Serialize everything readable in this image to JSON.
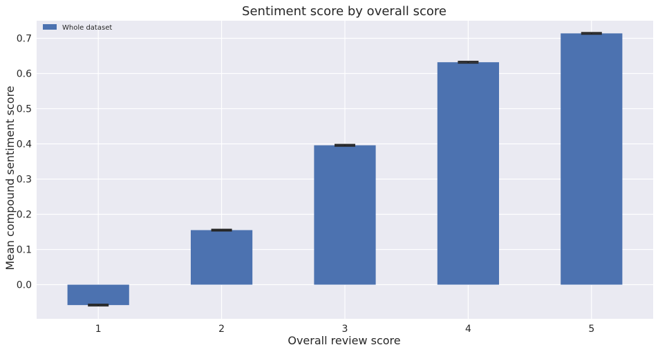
{
  "chart_data": {
    "type": "bar",
    "title": "Sentiment score by overall score",
    "xlabel": "Overall review score",
    "ylabel": "Mean compound sentiment score",
    "categories": [
      "1",
      "2",
      "3",
      "4",
      "5"
    ],
    "series": [
      {
        "name": "Whole dataset",
        "values": [
          -0.058,
          0.155,
          0.396,
          0.632,
          0.714
        ],
        "error": [
          0.002,
          0.002,
          0.002,
          0.002,
          0.002
        ]
      }
    ],
    "yticks": [
      "0.0",
      "0.1",
      "0.2",
      "0.3",
      "0.4",
      "0.5",
      "0.6",
      "0.7"
    ],
    "ylim": [
      -0.097,
      0.75
    ],
    "grid": true,
    "legend_position": "top-left",
    "colors": {
      "background": "#eaeaf2",
      "grid": "#ffffff",
      "bar": "#4c72b0",
      "errorbar": "#262626",
      "text": "#262626"
    }
  }
}
